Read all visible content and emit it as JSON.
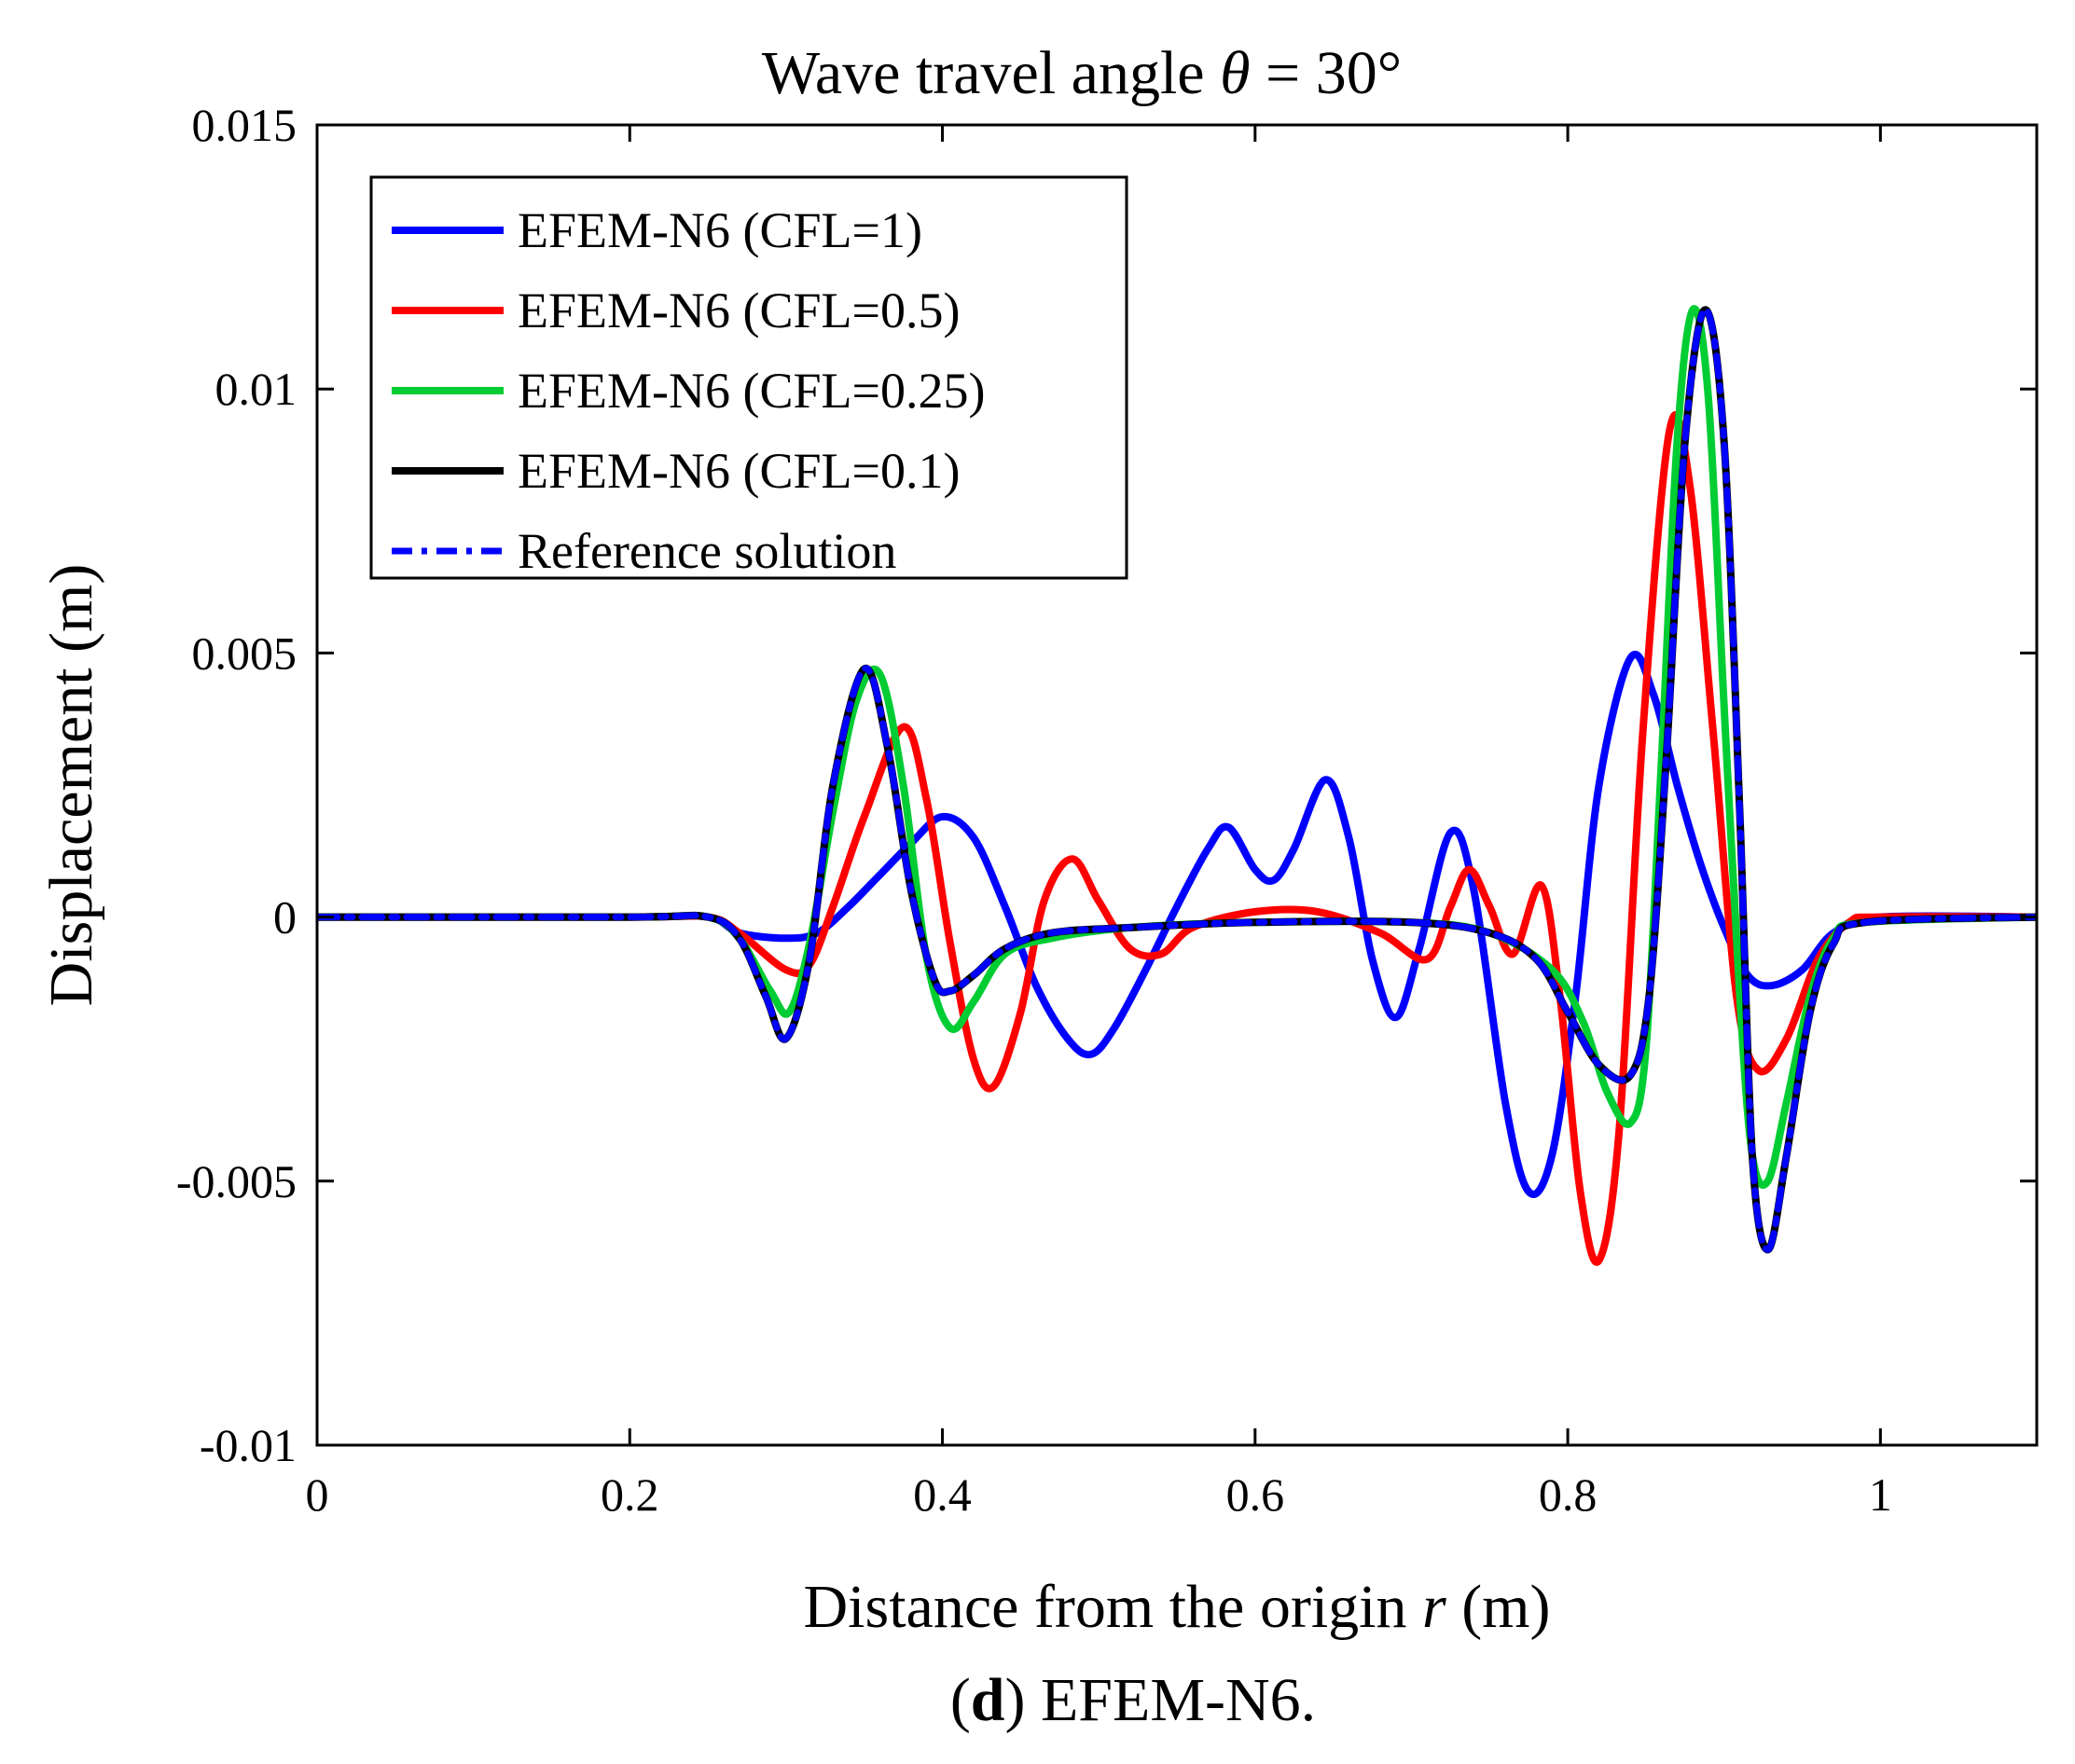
{
  "chart_data": {
    "type": "line",
    "title": {
      "prefix": "Wave travel angle ",
      "symbol": "θ",
      "suffix": " = 30°"
    },
    "xlabel": {
      "prefix": "Distance from the origin ",
      "symbol": "r",
      "suffix": " (m)"
    },
    "ylabel": "Displacement (m)",
    "caption": {
      "open": "(",
      "letter": "d",
      "rest": ") EFEM-N6."
    },
    "xlim": [
      0,
      1.1
    ],
    "ylim": [
      -0.01,
      0.015
    ],
    "xticks": [
      {
        "value": 0,
        "label": "0"
      },
      {
        "value": 0.2,
        "label": "0.2"
      },
      {
        "value": 0.4,
        "label": "0.4"
      },
      {
        "value": 0.6,
        "label": "0.6"
      },
      {
        "value": 0.8,
        "label": "0.8"
      },
      {
        "value": 1,
        "label": "1"
      }
    ],
    "yticks": [
      {
        "value": -0.01,
        "label": "-0.01"
      },
      {
        "value": -0.005,
        "label": "-0.005"
      },
      {
        "value": 0,
        "label": "0"
      },
      {
        "value": 0.005,
        "label": "0.005"
      },
      {
        "value": 0.01,
        "label": "0.01"
      },
      {
        "value": 0.015,
        "label": "0.015"
      }
    ],
    "grid": false,
    "legend_position": "top-left",
    "series": [
      {
        "name": "EFEM-N6 (CFL=1)",
        "color": "#0000ff",
        "style": "solid",
        "points": [
          [
            0,
            0
          ],
          [
            0.2,
            0
          ],
          [
            0.25,
            0
          ],
          [
            0.27,
            -0.0003
          ],
          [
            0.3,
            -0.0004
          ],
          [
            0.32,
            -0.0003
          ],
          [
            0.34,
            0.0002
          ],
          [
            0.36,
            0.0008
          ],
          [
            0.38,
            0.0014
          ],
          [
            0.4,
            0.0019
          ],
          [
            0.42,
            0.0015
          ],
          [
            0.44,
            0.0002
          ],
          [
            0.46,
            -0.0013
          ],
          [
            0.48,
            -0.0023
          ],
          [
            0.495,
            -0.0026
          ],
          [
            0.51,
            -0.0021
          ],
          [
            0.53,
            -0.001
          ],
          [
            0.55,
            0.0002
          ],
          [
            0.57,
            0.0013
          ],
          [
            0.583,
            0.0017
          ],
          [
            0.6,
            0.0009
          ],
          [
            0.612,
            0.0007
          ],
          [
            0.625,
            0.0013
          ],
          [
            0.645,
            0.0026
          ],
          [
            0.66,
            0.0015
          ],
          [
            0.675,
            -0.0008
          ],
          [
            0.69,
            -0.0019
          ],
          [
            0.705,
            -0.0006
          ],
          [
            0.725,
            0.0016
          ],
          [
            0.74,
            0.0005
          ],
          [
            0.76,
            -0.0035
          ],
          [
            0.775,
            -0.0052
          ],
          [
            0.79,
            -0.0045
          ],
          [
            0.805,
            -0.0015
          ],
          [
            0.82,
            0.0025
          ],
          [
            0.84,
            0.0049
          ],
          [
            0.855,
            0.0042
          ],
          [
            0.87,
            0.0025
          ],
          [
            0.885,
            0.001
          ],
          [
            0.9,
            -0.0002
          ],
          [
            0.915,
            -0.0011
          ],
          [
            0.93,
            -0.0013
          ],
          [
            0.95,
            -0.001
          ],
          [
            0.97,
            -0.0003
          ],
          [
            1,
            0
          ],
          [
            1.1,
            0
          ]
        ]
      },
      {
        "name": "EFEM-N6 (CFL=0.5)",
        "color": "#ff0000",
        "style": "solid",
        "points": [
          [
            0,
            0
          ],
          [
            0.2,
            0
          ],
          [
            0.25,
            0
          ],
          [
            0.27,
            -0.0003
          ],
          [
            0.3,
            -0.001
          ],
          [
            0.315,
            -0.0009
          ],
          [
            0.33,
            0.0002
          ],
          [
            0.35,
            0.0019
          ],
          [
            0.375,
            0.0036
          ],
          [
            0.39,
            0.0022
          ],
          [
            0.405,
            -0.0005
          ],
          [
            0.42,
            -0.0027
          ],
          [
            0.433,
            -0.0032
          ],
          [
            0.45,
            -0.0018
          ],
          [
            0.465,
            0.0003
          ],
          [
            0.483,
            0.0011
          ],
          [
            0.5,
            0.0003
          ],
          [
            0.52,
            -0.0006
          ],
          [
            0.54,
            -0.0007
          ],
          [
            0.56,
            -0.0002
          ],
          [
            0.6,
            0.0001
          ],
          [
            0.64,
            0.0001
          ],
          [
            0.68,
            -0.0003
          ],
          [
            0.71,
            -0.0008
          ],
          [
            0.725,
            0.0002
          ],
          [
            0.737,
            0.0009
          ],
          [
            0.75,
            0.0002
          ],
          [
            0.765,
            -0.0007
          ],
          [
            0.783,
            0.0006
          ],
          [
            0.795,
            -0.0015
          ],
          [
            0.808,
            -0.0052
          ],
          [
            0.82,
            -0.0065
          ],
          [
            0.833,
            -0.004
          ],
          [
            0.848,
            0.0035
          ],
          [
            0.865,
            0.0092
          ],
          [
            0.878,
            0.0082
          ],
          [
            0.893,
            0.0035
          ],
          [
            0.908,
            -0.0015
          ],
          [
            0.922,
            -0.0029
          ],
          [
            0.94,
            -0.0023
          ],
          [
            0.96,
            -0.0008
          ],
          [
            0.98,
            -0.0001
          ],
          [
            1,
            0
          ],
          [
            1.1,
            0
          ]
        ]
      },
      {
        "name": "EFEM-N6 (CFL=0.25)",
        "color": "#00cc33",
        "style": "solid",
        "points": [
          [
            0,
            0
          ],
          [
            0.2,
            0
          ],
          [
            0.25,
            0
          ],
          [
            0.27,
            -0.0004
          ],
          [
            0.29,
            -0.0014
          ],
          [
            0.302,
            -0.0018
          ],
          [
            0.315,
            -0.0005
          ],
          [
            0.33,
            0.002
          ],
          [
            0.345,
            0.0041
          ],
          [
            0.36,
            0.0046
          ],
          [
            0.375,
            0.0025
          ],
          [
            0.39,
            -0.0008
          ],
          [
            0.405,
            -0.0021
          ],
          [
            0.42,
            -0.0016
          ],
          [
            0.44,
            -0.0007
          ],
          [
            0.47,
            -0.0004
          ],
          [
            0.52,
            -0.0002
          ],
          [
            0.6,
            -0.0001
          ],
          [
            0.7,
            -0.0001
          ],
          [
            0.75,
            -0.0003
          ],
          [
            0.79,
            -0.001
          ],
          [
            0.81,
            -0.002
          ],
          [
            0.825,
            -0.0033
          ],
          [
            0.84,
            -0.0039
          ],
          [
            0.85,
            -0.0025
          ],
          [
            0.86,
            0.003
          ],
          [
            0.87,
            0.009
          ],
          [
            0.88,
            0.0115
          ],
          [
            0.89,
            0.0098
          ],
          [
            0.9,
            0.004
          ],
          [
            0.91,
            -0.0015
          ],
          [
            0.918,
            -0.0045
          ],
          [
            0.928,
            -0.005
          ],
          [
            0.94,
            -0.0035
          ],
          [
            0.955,
            -0.0015
          ],
          [
            0.97,
            -0.0004
          ],
          [
            0.99,
            -0.0001
          ],
          [
            1.1,
            0
          ]
        ]
      },
      {
        "name": "EFEM-N6 (CFL=0.1)",
        "color": "#000000",
        "style": "solid",
        "points": [
          [
            0,
            0
          ],
          [
            0.2,
            0
          ],
          [
            0.25,
            0
          ],
          [
            0.27,
            -0.0004
          ],
          [
            0.287,
            -0.0015
          ],
          [
            0.3,
            -0.0023
          ],
          [
            0.315,
            -0.0008
          ],
          [
            0.33,
            0.0025
          ],
          [
            0.35,
            0.0047
          ],
          [
            0.365,
            0.0032
          ],
          [
            0.38,
            0.0005
          ],
          [
            0.395,
            -0.0012
          ],
          [
            0.405,
            -0.0014
          ],
          [
            0.42,
            -0.0011
          ],
          [
            0.44,
            -0.0006
          ],
          [
            0.47,
            -0.0003
          ],
          [
            0.52,
            -0.0002
          ],
          [
            0.6,
            -0.0001
          ],
          [
            0.7,
            -0.0001
          ],
          [
            0.75,
            -0.0003
          ],
          [
            0.78,
            -0.0008
          ],
          [
            0.8,
            -0.0018
          ],
          [
            0.82,
            -0.0028
          ],
          [
            0.84,
            -0.003
          ],
          [
            0.852,
            -0.0015
          ],
          [
            0.863,
            0.003
          ],
          [
            0.875,
            0.009
          ],
          [
            0.888,
            0.0115
          ],
          [
            0.9,
            0.009
          ],
          [
            0.91,
            0.002
          ],
          [
            0.918,
            -0.0045
          ],
          [
            0.928,
            -0.0063
          ],
          [
            0.94,
            -0.0045
          ],
          [
            0.955,
            -0.0018
          ],
          [
            0.97,
            -0.0005
          ],
          [
            0.99,
            -0.0001
          ],
          [
            1.1,
            0
          ]
        ]
      },
      {
        "name": "Reference solution",
        "color": "#0000ff",
        "style": "dashdot",
        "points": [
          [
            0,
            0
          ],
          [
            0.2,
            0
          ],
          [
            0.25,
            0
          ],
          [
            0.27,
            -0.0004
          ],
          [
            0.287,
            -0.0015
          ],
          [
            0.3,
            -0.0023
          ],
          [
            0.315,
            -0.0008
          ],
          [
            0.33,
            0.0025
          ],
          [
            0.35,
            0.0047
          ],
          [
            0.365,
            0.0032
          ],
          [
            0.38,
            0.0005
          ],
          [
            0.395,
            -0.0012
          ],
          [
            0.405,
            -0.0014
          ],
          [
            0.42,
            -0.0011
          ],
          [
            0.44,
            -0.0006
          ],
          [
            0.47,
            -0.0003
          ],
          [
            0.52,
            -0.0002
          ],
          [
            0.6,
            -0.0001
          ],
          [
            0.7,
            -0.0001
          ],
          [
            0.75,
            -0.0003
          ],
          [
            0.78,
            -0.0008
          ],
          [
            0.8,
            -0.0018
          ],
          [
            0.82,
            -0.0028
          ],
          [
            0.84,
            -0.003
          ],
          [
            0.852,
            -0.0015
          ],
          [
            0.863,
            0.003
          ],
          [
            0.875,
            0.009
          ],
          [
            0.888,
            0.0115
          ],
          [
            0.9,
            0.009
          ],
          [
            0.91,
            0.002
          ],
          [
            0.918,
            -0.0045
          ],
          [
            0.928,
            -0.0063
          ],
          [
            0.94,
            -0.0045
          ],
          [
            0.955,
            -0.0018
          ],
          [
            0.97,
            -0.0005
          ],
          [
            0.99,
            -0.0001
          ],
          [
            1.1,
            0
          ]
        ]
      }
    ]
  }
}
